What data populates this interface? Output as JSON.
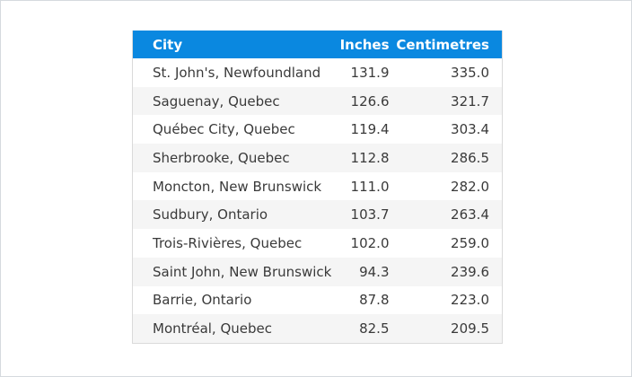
{
  "table": {
    "headers": {
      "city": "City",
      "inches": "Inches",
      "centimetres": "Centimetres"
    },
    "rows": [
      {
        "city": "St. John's, Newfoundland",
        "inches": "131.9",
        "centimetres": "335.0"
      },
      {
        "city": "Saguenay, Quebec",
        "inches": "126.6",
        "centimetres": "321.7"
      },
      {
        "city": "Québec City, Quebec",
        "inches": "119.4",
        "centimetres": "303.4"
      },
      {
        "city": "Sherbrooke, Quebec",
        "inches": "112.8",
        "centimetres": "286.5"
      },
      {
        "city": "Moncton, New Brunswick",
        "inches": "111.0",
        "centimetres": "282.0"
      },
      {
        "city": "Sudbury, Ontario",
        "inches": "103.7",
        "centimetres": "263.4"
      },
      {
        "city": "Trois-Rivières, Quebec",
        "inches": "102.0",
        "centimetres": "259.0"
      },
      {
        "city": "Saint John, New Brunswick",
        "inches": "94.3",
        "centimetres": "239.6"
      },
      {
        "city": "Barrie, Ontario",
        "inches": "87.8",
        "centimetres": "223.0"
      },
      {
        "city": "Montréal, Quebec",
        "inches": "82.5",
        "centimetres": "209.5"
      }
    ]
  },
  "colors": {
    "header_background": "#0a88e0",
    "header_text": "#ffffff",
    "row_stripe": "#f5f5f5",
    "cell_text": "#3a3a3a"
  }
}
